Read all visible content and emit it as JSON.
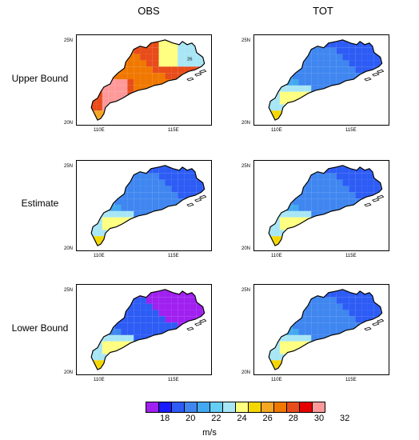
{
  "columns": [
    "OBS",
    "TOT"
  ],
  "rows": [
    "Upper Bound",
    "Estimate",
    "Lower Bound"
  ],
  "lat_labels": [
    "25N",
    "20N"
  ],
  "lon_labels": [
    "110E",
    "115E"
  ],
  "annotation": "26",
  "colorbar": {
    "colors": [
      "#a020f0",
      "#1a1aff",
      "#2d5cf5",
      "#3f86f0",
      "#42a8f0",
      "#66cdf5",
      "#a8e6f5",
      "#ffff80",
      "#f5d700",
      "#f5a623",
      "#f07800",
      "#e84c1a",
      "#e60000",
      "#ff9999"
    ],
    "labels": [
      "18",
      "20",
      "22",
      "24",
      "26",
      "28",
      "30",
      "32"
    ],
    "units": "m/s"
  },
  "map_data": {
    "grid": {
      "lon0": 108.8,
      "lat0": 20.2,
      "dlon": 0.45,
      "dlat": 0.45,
      "ncols": 19,
      "nrows": 12
    },
    "panels": [
      {
        "row": 0,
        "col": 0,
        "fields": "obs_upper"
      },
      {
        "row": 0,
        "col": 1,
        "fields": "tot_upper"
      },
      {
        "row": 1,
        "col": 0,
        "fields": "obs_est"
      },
      {
        "row": 1,
        "col": 1,
        "fields": "tot_est"
      },
      {
        "row": 2,
        "col": 0,
        "fields": "obs_lower"
      },
      {
        "row": 2,
        "col": 1,
        "fields": "tot_lower"
      }
    ]
  }
}
